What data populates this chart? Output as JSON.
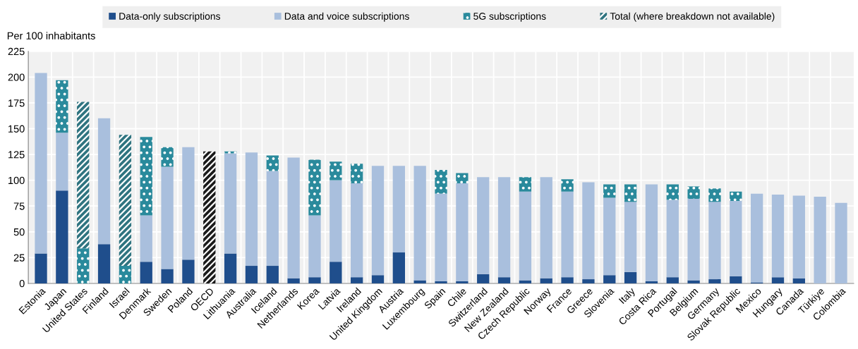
{
  "chart_data": {
    "type": "bar",
    "stacked": true,
    "ylabel": "Per 100 inhabitants",
    "categories": [
      "Estonia",
      "Japan",
      "United States",
      "Finland",
      "Israel",
      "Denmark",
      "Sweden",
      "Poland",
      "OECD",
      "Lithuania",
      "Australia",
      "Iceland",
      "Netherlands",
      "Korea",
      "Latvia",
      "Ireland",
      "United Kingdom",
      "Austria",
      "Luxembourg",
      "Spain",
      "Chile",
      "Switzerland",
      "New Zealand",
      "Czech Republic",
      "Norway",
      "France",
      "Greece",
      "Slovenia",
      "Italy",
      "Costa Rica",
      "Portugal",
      "Belgium",
      "Germany",
      "Slovak Republic",
      "Mexico",
      "Hungary",
      "Canada",
      "Türkiye",
      "Colombia"
    ],
    "series": [
      {
        "name": "Data-only subscriptions",
        "color": "#1f4e8c",
        "values": [
          29,
          90,
          null,
          38,
          null,
          21,
          14,
          23,
          null,
          29,
          17,
          17,
          5,
          6,
          21,
          6,
          8,
          30,
          3,
          2,
          2,
          9,
          6,
          3,
          5,
          6,
          4,
          8,
          11,
          2,
          6,
          3,
          4,
          7,
          1,
          6,
          5,
          null,
          null
        ]
      },
      {
        "name": "Data and voice subscriptions",
        "color": "#a9bfdd",
        "values": [
          175,
          56,
          null,
          122,
          null,
          45,
          99,
          109,
          null,
          97,
          110,
          92,
          117,
          60,
          79,
          91,
          106,
          84,
          111,
          85,
          95,
          94,
          97,
          86,
          98,
          83,
          94,
          75,
          68,
          94,
          75,
          79,
          75,
          73,
          86,
          80,
          80,
          84,
          78
        ]
      },
      {
        "name": "5G subscriptions",
        "color": "#2a8a9c",
        "values": [
          null,
          51,
          34,
          null,
          17,
          76,
          19,
          null,
          null,
          2,
          null,
          15,
          null,
          54,
          18,
          19,
          null,
          null,
          null,
          23,
          10,
          null,
          null,
          14,
          null,
          12,
          null,
          13,
          17,
          null,
          15,
          12,
          13,
          9,
          null,
          null,
          null,
          null,
          null
        ]
      },
      {
        "name": "Total (where breakdown not available)",
        "color": "#2f7480",
        "colors": [
          null,
          null,
          "#2f7480",
          null,
          "#2f7480",
          null,
          null,
          null,
          "#1a1a1a",
          null,
          null,
          null,
          null,
          null,
          null,
          null,
          null,
          null,
          null,
          null,
          null,
          null,
          null,
          null,
          null,
          null,
          null,
          null,
          null,
          null,
          null,
          null,
          null,
          null,
          null,
          null,
          null,
          null,
          null
        ],
        "values": [
          null,
          null,
          142,
          null,
          127,
          null,
          null,
          null,
          128,
          null,
          null,
          null,
          null,
          null,
          null,
          null,
          null,
          null,
          null,
          null,
          null,
          null,
          null,
          null,
          null,
          null,
          null,
          null,
          null,
          null,
          null,
          null,
          null,
          null,
          null,
          null,
          null,
          null,
          null
        ]
      }
    ],
    "ylim": [
      0,
      225
    ],
    "yticks": [
      0,
      25,
      50,
      75,
      100,
      125,
      150,
      175,
      200,
      225
    ],
    "grid": true,
    "legend": "top"
  }
}
